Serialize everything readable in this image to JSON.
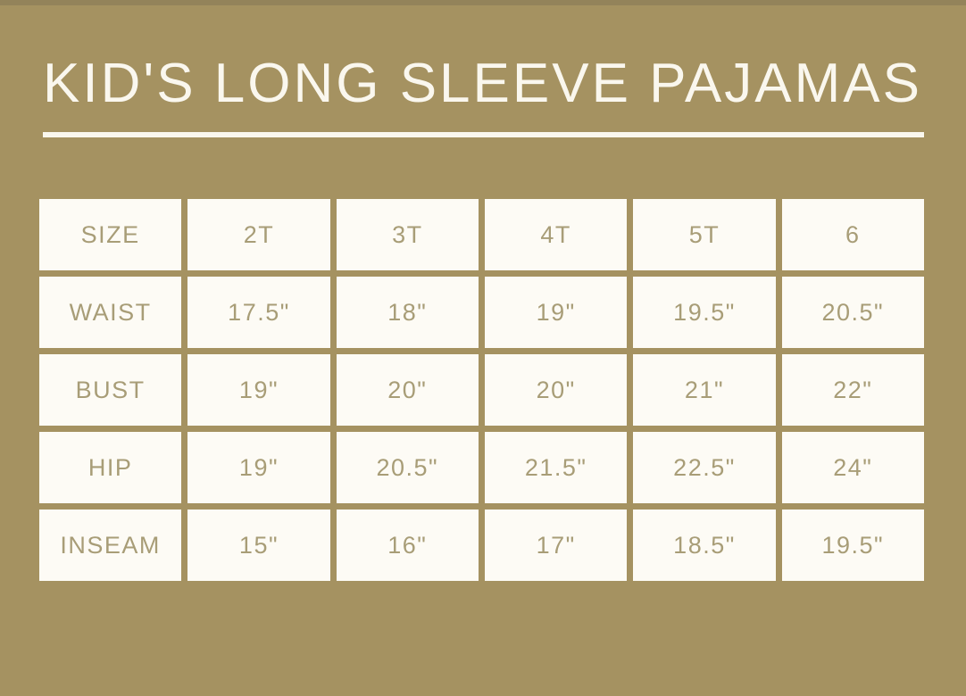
{
  "page": {
    "title": "KID'S LONG SLEEVE PAJAMAS",
    "background_color": "#a59261",
    "title_color": "#faf7ee",
    "cell_text_color": "#a89d77",
    "cell_background_color": "#fdfbf5"
  },
  "table": {
    "row_labels": [
      "SIZE",
      "WAIST",
      "BUST",
      "HIP",
      "INSEAM"
    ],
    "size_columns": [
      "2T",
      "3T",
      "4T",
      "5T",
      "6"
    ],
    "cells": [
      [
        "SIZE",
        "2T",
        "3T",
        "4T",
        "5T",
        "6"
      ],
      [
        "WAIST",
        "17.5\"",
        "18\"",
        "19\"",
        "19.5\"",
        "20.5\""
      ],
      [
        "BUST",
        "19\"",
        "20\"",
        "20\"",
        "21\"",
        "22\""
      ],
      [
        "HIP",
        "19\"",
        "20.5\"",
        "21.5\"",
        "22.5\"",
        "24\""
      ],
      [
        "INSEAM",
        "15\"",
        "16\"",
        "17\"",
        "18.5\"",
        "19.5\""
      ]
    ]
  }
}
